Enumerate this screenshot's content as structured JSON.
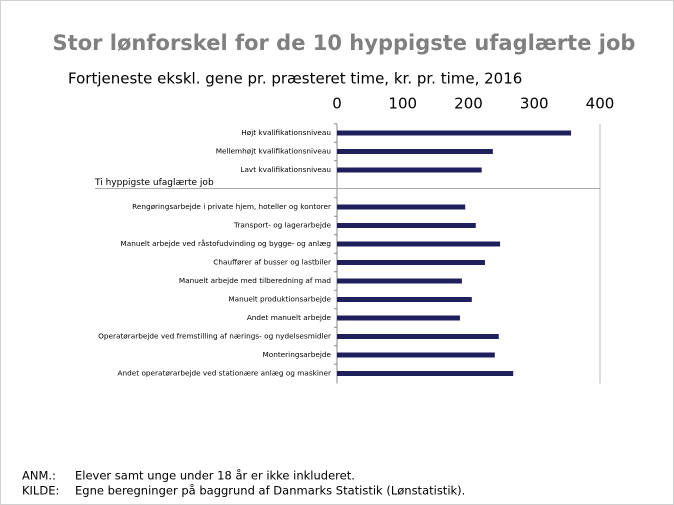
{
  "chart_data": {
    "type": "bar",
    "orientation": "horizontal",
    "title": "Stor lønforskel for de 10 hyppigste ufaglærte job",
    "subtitle": "Fortjeneste ekskl. gene pr. præsteret time, kr. pr. time, 2016",
    "categories": [
      "Højt kvalifikationsniveau",
      "Mellemhøjt kvalifikationsniveau",
      "Lavt kvalifikationsniveau",
      "Ti hyppigste ufaglærte job",
      "Rengøringsarbejde i private hjem, hoteller og kontorer",
      "Transport- og lagerarbejde",
      "Manuelt arbejde ved råstofudvinding og bygge- og anlæg",
      "Chauffører af busser og lastbiler",
      "Manuelt arbejde med tilberedning af mad",
      "Manuelt produktionsarbejde",
      "Andet manuelt arbejde",
      "Operatørarbejde ved fremstilling af nærings- og nydelsesmidler",
      "Monteringsarbejde",
      "Andet operatørarbejde ved stationære anlæg og maskiner"
    ],
    "values": [
      356,
      237,
      220,
      null,
      195,
      211,
      248,
      225,
      190,
      205,
      187,
      246,
      240,
      268
    ],
    "color": "#1f1f5c",
    "xlim": [
      0,
      400
    ],
    "xticks": [
      0,
      100,
      200,
      300,
      400
    ],
    "x_axis_position": "top",
    "notes": [
      {
        "label": "ANM.:",
        "text": "Elever samt unge under 18 år er ikke inkluderet."
      },
      {
        "label": "KILDE:",
        "text": "Egne beregninger på baggrund af Danmarks Statistik (Lønstatistik)."
      }
    ]
  }
}
